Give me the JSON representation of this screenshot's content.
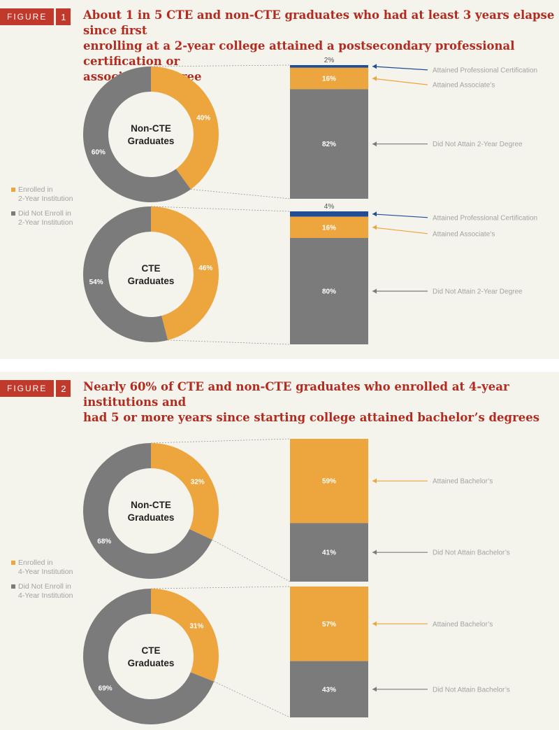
{
  "colors": {
    "orange": "#eda53e",
    "gray": "#7b7b7c",
    "blue": "#1f4e96",
    "red": "#c1392b"
  },
  "figure_label": "FIGURE",
  "figures": [
    {
      "number": "1",
      "title_line1": "About 1 in 5 CTE and non-CTE graduates who had at least 3 years elapse since first",
      "title_line2": "enrolling at a 2-year college attained a postsecondary professional certification or",
      "title_line3": "associate’s degree",
      "legend": {
        "enrolled_line1": "Enrolled in",
        "enrolled_line2": "2-Year Institution",
        "not_line1": "Did Not Enroll in",
        "not_line2": "2-Year Institution"
      }
    },
    {
      "number": "2",
      "title_line1": "Nearly 60% of CTE and non-CTE graduates who enrolled at 4-year institutions and",
      "title_line2": "had 5 or more years since starting college attained bachelor’s degrees",
      "title_line3": "",
      "legend": {
        "enrolled_line1": "Enrolled in",
        "enrolled_line2": "4-Year Institution",
        "not_line1": "Did Not Enroll in",
        "not_line2": "4-Year Institution"
      }
    }
  ],
  "chart_data": [
    {
      "type": "pie",
      "figure": 1,
      "center_label": [
        "Non-CTE",
        "Graduates"
      ],
      "slices": [
        {
          "label": "Enrolled in 2-Year Institution",
          "value": 40,
          "color": "#eda53e"
        },
        {
          "label": "Did Not Enroll in 2-Year Institution",
          "value": 60,
          "color": "#7b7b7c"
        }
      ],
      "breakdown": {
        "type": "bar",
        "stacked": true,
        "segments": [
          {
            "label": "Attained Professional Certification",
            "value": 2,
            "value_label": "2%",
            "color": "#1f4e96"
          },
          {
            "label": "Attained Associate’s",
            "value": 16,
            "value_label": "16%",
            "color": "#eda53e"
          },
          {
            "label": "Did Not Attain 2-Year Degree",
            "value": 82,
            "value_label": "82%",
            "color": "#7b7b7c"
          }
        ]
      }
    },
    {
      "type": "pie",
      "figure": 1,
      "center_label": [
        "CTE",
        "Graduates"
      ],
      "slices": [
        {
          "label": "Enrolled in 2-Year Institution",
          "value": 46,
          "color": "#eda53e"
        },
        {
          "label": "Did Not Enroll in 2-Year Institution",
          "value": 54,
          "color": "#7b7b7c"
        }
      ],
      "breakdown": {
        "type": "bar",
        "stacked": true,
        "segments": [
          {
            "label": "Attained Professional Certification",
            "value": 4,
            "value_label": "4%",
            "color": "#1f4e96"
          },
          {
            "label": "Attained Associate’s",
            "value": 16,
            "value_label": "16%",
            "color": "#eda53e"
          },
          {
            "label": "Did Not Attain 2-Year Degree",
            "value": 80,
            "value_label": "80%",
            "color": "#7b7b7c"
          }
        ]
      }
    },
    {
      "type": "pie",
      "figure": 2,
      "center_label": [
        "Non-CTE",
        "Graduates"
      ],
      "slices": [
        {
          "label": "Enrolled in 4-Year Institution",
          "value": 32,
          "color": "#eda53e"
        },
        {
          "label": "Did Not Enroll in 4-Year Institution",
          "value": 68,
          "color": "#7b7b7c"
        }
      ],
      "breakdown": {
        "type": "bar",
        "stacked": true,
        "segments": [
          {
            "label": "Attained Bachelor’s",
            "value": 59,
            "value_label": "59%",
            "color": "#eda53e"
          },
          {
            "label": "Did Not Attain Bachelor’s",
            "value": 41,
            "value_label": "41%",
            "color": "#7b7b7c"
          }
        ]
      }
    },
    {
      "type": "pie",
      "figure": 2,
      "center_label": [
        "CTE",
        "Graduates"
      ],
      "slices": [
        {
          "label": "Enrolled in 4-Year Institution",
          "value": 31,
          "color": "#eda53e"
        },
        {
          "label": "Did Not Enroll in 4-Year Institution",
          "value": 69,
          "color": "#7b7b7c"
        }
      ],
      "breakdown": {
        "type": "bar",
        "stacked": true,
        "segments": [
          {
            "label": "Attained Bachelor’s",
            "value": 57,
            "value_label": "57%",
            "color": "#eda53e"
          },
          {
            "label": "Did Not Attain Bachelor’s",
            "value": 43,
            "value_label": "43%",
            "color": "#7b7b7c"
          }
        ]
      }
    }
  ]
}
